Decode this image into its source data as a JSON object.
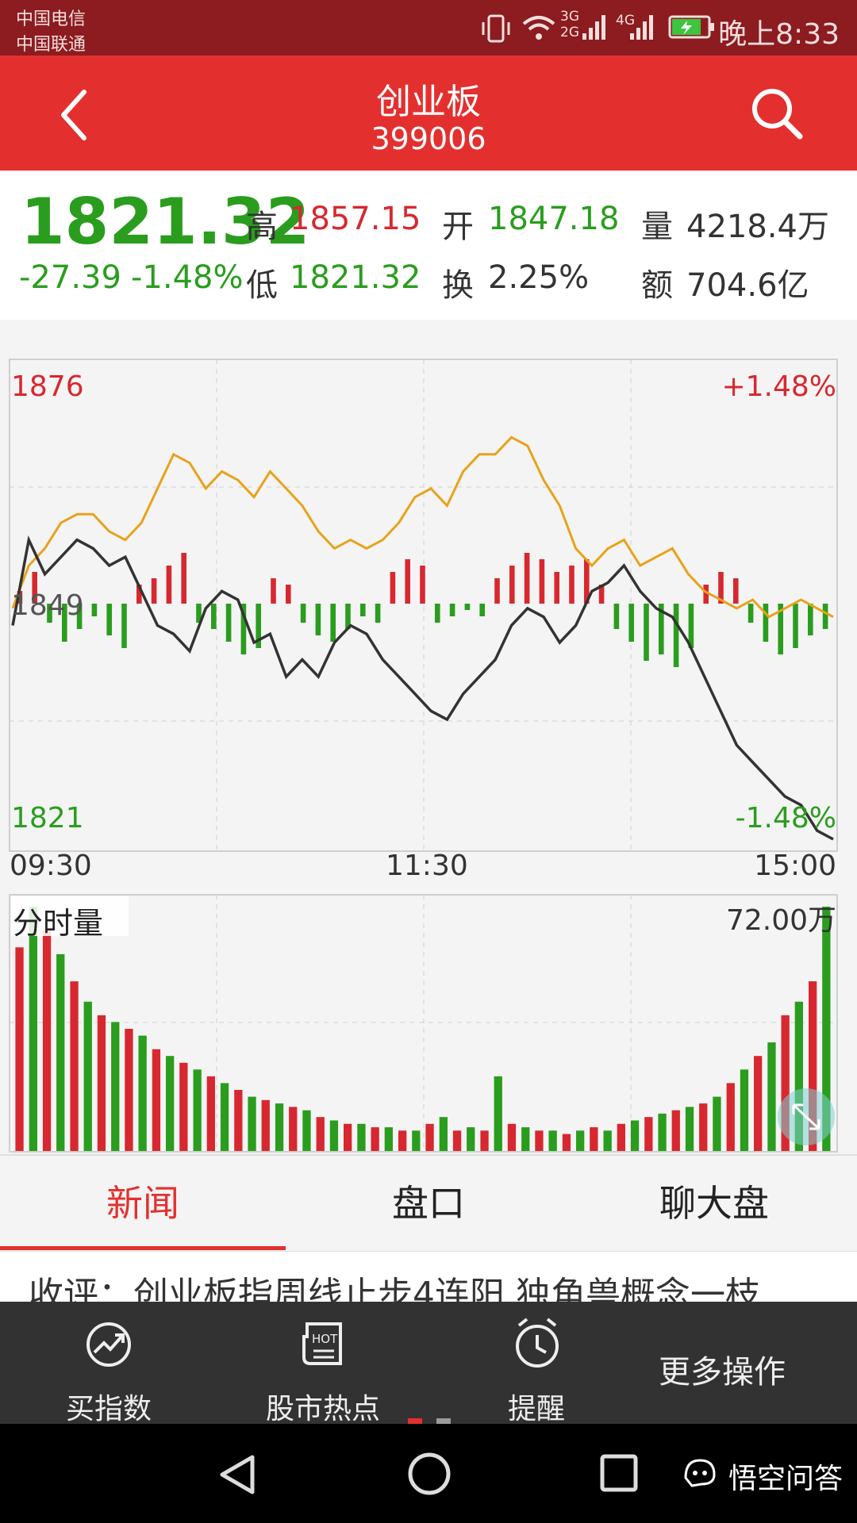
{
  "status_bar": {
    "carrier_1": "中国电信",
    "carrier_2": "中国联通",
    "network_label_1": "3G",
    "network_label_2": "2G",
    "network_label_3": "4G",
    "time": "晚上8:33"
  },
  "header": {
    "title": "创业板",
    "code": "399006",
    "back_icon": "chevron-left-icon",
    "search_icon": "search-icon"
  },
  "quote": {
    "price": "1821.32",
    "change": "-27.39",
    "change_pct": "-1.48%",
    "high_label": "高",
    "high_value": "1857.15",
    "low_label": "低",
    "low_value": "1821.32",
    "open_label": "开",
    "open_value": "1847.18",
    "turnover_label": "换",
    "turnover_value": "2.25%",
    "volume_label": "量",
    "volume_value": "4218.4万",
    "amount_label": "额",
    "amount_value": "704.6亿"
  },
  "colors": {
    "accent_red": "#e3302f",
    "status_bar": "#8c1c1f",
    "up_red": "#d7282f",
    "down_green": "#2a9d1e",
    "avg_line": "#e8a21a",
    "price_line": "#333333"
  },
  "chart_data": [
    {
      "type": "line",
      "y_top_label": "1876",
      "y_mid_label": "1849",
      "y_bottom_label": "1821",
      "pct_top_label": "+1.48%",
      "pct_bottom_label": "-1.48%",
      "x_labels": [
        "09:30",
        "11:30",
        "15:00"
      ],
      "ylim": [
        1821,
        1876
      ],
      "series": [
        {
          "values": [
            1846,
            1856,
            1852,
            1854,
            1856,
            1855,
            1853,
            1854,
            1850,
            1846,
            1845,
            1843,
            1848,
            1850,
            1849,
            1844,
            1845,
            1840,
            1842,
            1840,
            1844,
            1846,
            1845,
            1842,
            1840,
            1838,
            1836,
            1835,
            1838,
            1840,
            1842,
            1846,
            1848,
            1847,
            1844,
            1846,
            1850,
            1851,
            1853,
            1850,
            1848,
            1847,
            1844,
            1840,
            1836,
            1832,
            1830,
            1828,
            1826,
            1825,
            1822,
            1821
          ]
        },
        {
          "values": [
            1848,
            1853,
            1855,
            1858,
            1859,
            1859,
            1857,
            1856,
            1858,
            1862,
            1866,
            1865,
            1862,
            1864,
            1863,
            1861,
            1864,
            1862,
            1860,
            1857,
            1855,
            1856,
            1855,
            1856,
            1858,
            1861,
            1862,
            1860,
            1864,
            1866,
            1866,
            1868,
            1867,
            1863,
            1860,
            1855,
            1853,
            1855,
            1856,
            1853,
            1854,
            1855,
            1852,
            1850,
            1849,
            1848,
            1849,
            1847,
            1848,
            1849,
            1848,
            1847
          ]
        }
      ],
      "bars_around_prev_close": [
        2,
        5,
        -3,
        -6,
        -4,
        -2,
        -5,
        -7,
        3,
        4,
        6,
        8,
        -3,
        -4,
        -6,
        -8,
        -7,
        4,
        3,
        -3,
        -5,
        -6,
        -4,
        -2,
        -3,
        5,
        7,
        6,
        -3,
        -2,
        -1,
        -2,
        4,
        6,
        8,
        7,
        5,
        6,
        7,
        3,
        -4,
        -6,
        -9,
        -8,
        -10,
        -7,
        3,
        5,
        4,
        -3,
        -6,
        -8,
        -7,
        -5,
        -4
      ]
    },
    {
      "type": "bar",
      "label": "分时量",
      "max_label": "72.00万",
      "values": [
        60,
        72,
        65,
        58,
        50,
        44,
        40,
        38,
        36,
        34,
        30,
        28,
        26,
        24,
        22,
        20,
        18,
        16,
        15,
        14,
        13,
        12,
        10,
        9,
        8,
        8,
        7,
        7,
        6,
        6,
        8,
        10,
        6,
        7,
        6,
        22,
        8,
        7,
        6,
        6,
        5,
        6,
        7,
        6,
        8,
        9,
        10,
        11,
        12,
        13,
        14,
        16,
        20,
        24,
        28,
        32,
        40,
        44,
        50,
        72
      ]
    }
  ],
  "tabs": [
    "新闻",
    "盘口",
    "聊大盘"
  ],
  "news_headline": "收评：创业板指周线止步4连阳 独角兽概念一枝",
  "bottom_bar": {
    "buy_index": "买指数",
    "hot": "股市热点",
    "hot_badge": "HOT",
    "reminder": "提醒",
    "more": "更多操作"
  },
  "watermark": "悟空问答"
}
